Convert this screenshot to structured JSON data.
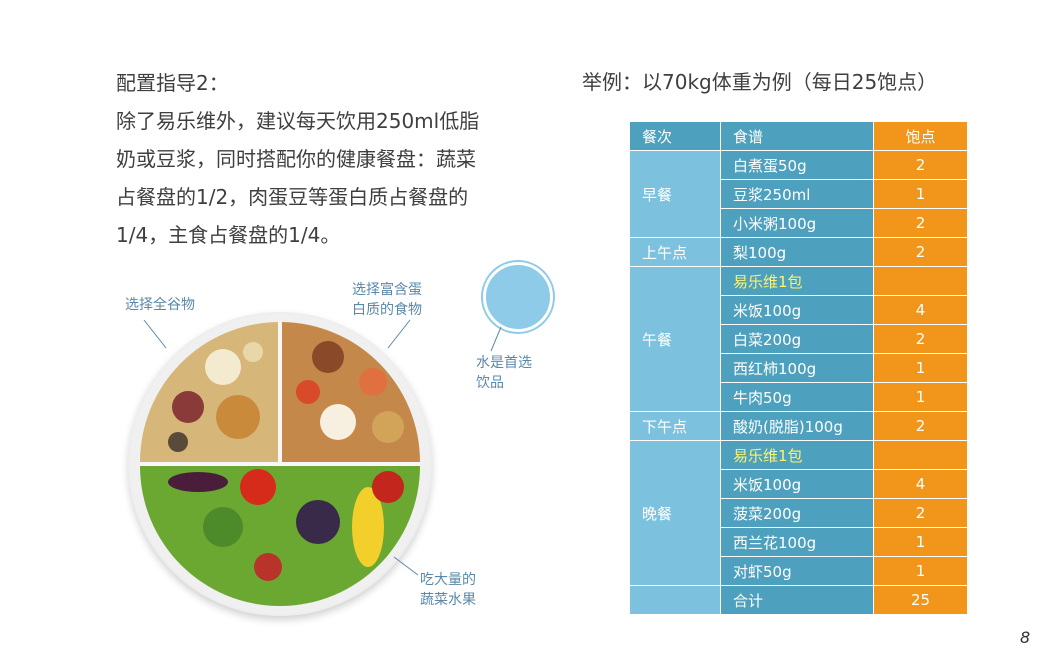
{
  "intro": {
    "lines": [
      "配置指导2：",
      "除了易乐维外，建议每天饮用250ml低脂",
      "奶或豆浆，同时搭配你的健康餐盘：蔬菜",
      "占餐盘的1/2，肉蛋豆等蛋白质占餐盘的",
      "1/4，主食占餐盘的1/4。"
    ]
  },
  "plate_labels": {
    "grains": "选择全谷物",
    "protein_line1": "选择富含蛋",
    "protein_line2": "白质的食物",
    "water_line1": "水是首选",
    "water_line2": "饮品",
    "veg_line1": "吃大量的",
    "veg_line2": "蔬菜水果"
  },
  "example_title": "举例：以70kg体重为例（每日25饱点）",
  "table": {
    "headers": [
      "餐次",
      "食谱",
      "饱点"
    ],
    "rows": [
      {
        "meal": "早餐",
        "food": "白煮蛋50g",
        "points": "2"
      },
      {
        "meal": "",
        "food": "豆浆250ml",
        "points": "1"
      },
      {
        "meal": "",
        "food": "小米粥100g",
        "points": "2"
      },
      {
        "meal": "上午点",
        "food": "梨100g",
        "points": "2"
      },
      {
        "meal": "",
        "food": "易乐维1包",
        "points": ""
      },
      {
        "meal": "午餐",
        "food": "米饭100g",
        "points": "4"
      },
      {
        "meal": "",
        "food": "白菜200g",
        "points": "2"
      },
      {
        "meal": "",
        "food": "西红柿100g",
        "points": "1"
      },
      {
        "meal": "",
        "food": "牛肉50g",
        "points": "1"
      },
      {
        "meal": "下午点",
        "food": "酸奶(脱脂)100g",
        "points": "2"
      },
      {
        "meal": "",
        "food": "易乐维1包",
        "points": ""
      },
      {
        "meal": "晚餐",
        "food": "米饭100g",
        "points": "4"
      },
      {
        "meal": "",
        "food": "菠菜200g",
        "points": "2"
      },
      {
        "meal": "",
        "food": "西兰花100g",
        "points": "1"
      },
      {
        "meal": "",
        "food": "对虾50g",
        "points": "1"
      },
      {
        "meal": "",
        "food": "合计",
        "points": "25"
      }
    ]
  },
  "page_number": "8"
}
